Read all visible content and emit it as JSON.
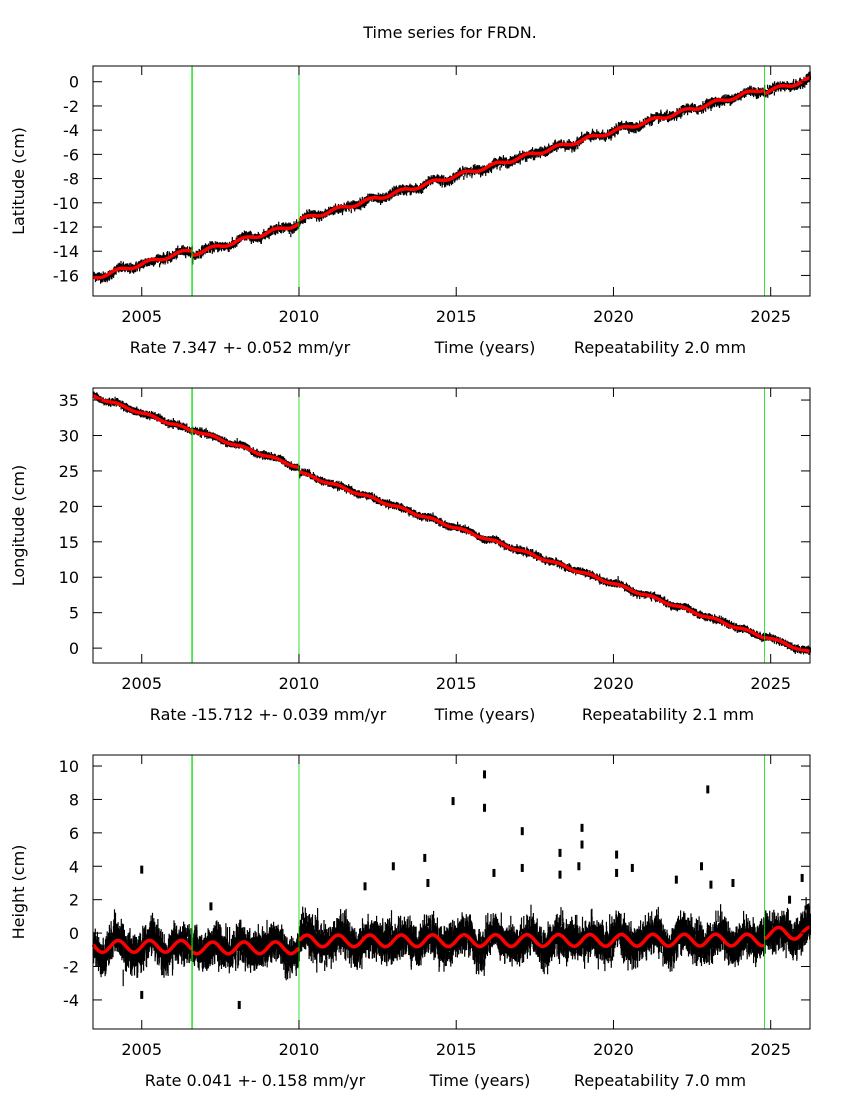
{
  "title": "Time series for FRDN.",
  "colors": {
    "data": "#000000",
    "fit": "#ff0000",
    "event_lines": "#00dd00"
  },
  "chart_data": [
    {
      "type": "scatter",
      "ylabel": "Latitude (cm)",
      "xlabel": "Time (years)",
      "rate_text": "Rate 7.347 +- 0.052 mm/yr",
      "repeatability_text": "Repeatability 2.0 mm",
      "xlim": [
        2003.45,
        2026.25
      ],
      "ylim": [
        -17.7,
        1.3
      ],
      "xticks": [
        2005,
        2010,
        2015,
        2020,
        2025
      ],
      "yticks": [
        0,
        -2,
        -4,
        -6,
        -8,
        -10,
        -12,
        -14,
        -16
      ],
      "event_lines": [
        2006.6,
        2010.0,
        2024.8
      ],
      "fit": {
        "start_epoch": 2003.45,
        "start_value": -16.2,
        "rate_cm_per_yr": 0.7347,
        "offsets": [
          {
            "epoch": 2006.6,
            "step": -0.35
          },
          {
            "epoch": 2010.0,
            "step": 0.3
          },
          {
            "epoch": 2024.8,
            "step": -0.3
          }
        ],
        "seasonal_amplitude": 0.15
      },
      "scatter_sigma": 0.22,
      "grid": false
    },
    {
      "type": "scatter",
      "ylabel": "Longitude (cm)",
      "xlabel": "Time (years)",
      "rate_text": "Rate -15.712 +- 0.039 mm/yr",
      "repeatability_text": "Repeatability 2.1 mm",
      "xlim": [
        2003.45,
        2026.25
      ],
      "ylim": [
        -2.1,
        36.7
      ],
      "xticks": [
        2005,
        2010,
        2015,
        2020,
        2025
      ],
      "yticks": [
        35,
        30,
        25,
        20,
        15,
        10,
        5,
        0
      ],
      "event_lines": [
        2006.6,
        2010.0,
        2024.8
      ],
      "fit": {
        "start_epoch": 2003.45,
        "start_value": 35.6,
        "rate_cm_per_yr": -1.5712,
        "offsets": [
          {
            "epoch": 2006.6,
            "step": 0.2
          },
          {
            "epoch": 2010.0,
            "step": -0.7
          },
          {
            "epoch": 2024.8,
            "step": 0.1
          }
        ],
        "seasonal_amplitude": 0.15
      },
      "scatter_sigma": 0.25,
      "grid": false
    },
    {
      "type": "scatter",
      "ylabel": "Height (cm)",
      "xlabel": "Time (years)",
      "rate_text": "Rate 0.041 +- 0.158 mm/yr",
      "repeatability_text": "Repeatability 7.0 mm",
      "xlim": [
        2003.45,
        2026.25
      ],
      "ylim": [
        -5.74,
        10.66
      ],
      "xticks": [
        2005,
        2010,
        2015,
        2020,
        2025
      ],
      "yticks": [
        10,
        8,
        6,
        4,
        2,
        0,
        -2,
        -4
      ],
      "event_lines": [
        2006.6,
        2010.0,
        2024.8
      ],
      "fit": {
        "start_epoch": 2003.45,
        "start_value": -0.8,
        "rate_cm_per_yr": 0.0041,
        "offsets": [
          {
            "epoch": 2006.6,
            "step": -0.1
          },
          {
            "epoch": 2010.0,
            "step": 0.4
          },
          {
            "epoch": 2024.8,
            "step": 0.4
          }
        ],
        "seasonal_amplitude": 0.35
      },
      "scatter_sigma": 0.6,
      "outliers": [
        [
          2005.0,
          3.8
        ],
        [
          2012.1,
          2.8
        ],
        [
          2013.0,
          4.0
        ],
        [
          2014.0,
          4.5
        ],
        [
          2014.1,
          3.0
        ],
        [
          2014.9,
          7.9
        ],
        [
          2015.9,
          9.5
        ],
        [
          2015.9,
          7.5
        ],
        [
          2016.2,
          3.6
        ],
        [
          2017.1,
          6.1
        ],
        [
          2017.1,
          3.9
        ],
        [
          2018.3,
          4.8
        ],
        [
          2018.3,
          3.5
        ],
        [
          2019.0,
          6.3
        ],
        [
          2019.0,
          5.3
        ],
        [
          2018.9,
          4.0
        ],
        [
          2020.1,
          4.7
        ],
        [
          2020.1,
          3.6
        ],
        [
          2020.6,
          3.9
        ],
        [
          2022.0,
          3.2
        ],
        [
          2022.8,
          4.0
        ],
        [
          2023.0,
          8.6
        ],
        [
          2023.1,
          2.9
        ],
        [
          2023.8,
          3.0
        ],
        [
          2025.6,
          2.0
        ],
        [
          2026.0,
          3.3
        ],
        [
          2008.1,
          -4.3
        ],
        [
          2005.0,
          -3.7
        ],
        [
          2007.2,
          1.6
        ]
      ],
      "grid": false
    }
  ]
}
